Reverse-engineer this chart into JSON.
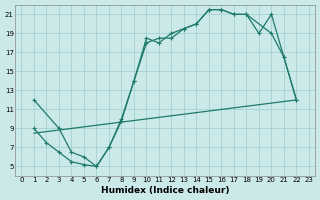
{
  "xlabel": "Humidex (Indice chaleur)",
  "bg_color": "#cce9e9",
  "grid_color": "#aad4d4",
  "line_color": "#1e7a6a",
  "xlim": [
    -0.5,
    23.5
  ],
  "ylim": [
    4,
    22
  ],
  "xticks": [
    0,
    1,
    2,
    3,
    4,
    5,
    6,
    7,
    8,
    9,
    10,
    11,
    12,
    13,
    14,
    15,
    16,
    17,
    18,
    19,
    20,
    21,
    22,
    23
  ],
  "yticks": [
    5,
    7,
    9,
    11,
    13,
    15,
    17,
    19,
    21
  ],
  "line1_x": [
    1,
    3,
    4,
    5,
    6,
    7,
    8,
    9,
    10,
    11,
    12,
    13,
    14,
    15,
    16,
    17,
    18,
    19,
    20,
    21,
    22
  ],
  "line1_y": [
    12,
    9,
    6.5,
    6.0,
    5.0,
    7.0,
    10.0,
    14.0,
    18.0,
    18.5,
    18.5,
    19.5,
    20.0,
    21.5,
    21.5,
    21.0,
    21.0,
    19.0,
    21.0,
    16.5,
    12.0
  ],
  "line2_x": [
    1,
    2,
    3,
    4,
    5,
    6,
    7,
    8,
    9,
    10,
    11,
    12,
    13,
    14,
    15,
    16,
    17,
    18,
    20,
    21,
    22
  ],
  "line2_y": [
    9,
    7.5,
    6.5,
    5.5,
    5.2,
    5.0,
    7.0,
    9.8,
    14.0,
    18.5,
    18.0,
    19.0,
    19.5,
    20.0,
    21.5,
    21.5,
    21.0,
    21.0,
    19.0,
    16.5,
    12.0
  ],
  "line3_x": [
    1,
    22
  ],
  "line3_y": [
    8.5,
    12.0
  ]
}
